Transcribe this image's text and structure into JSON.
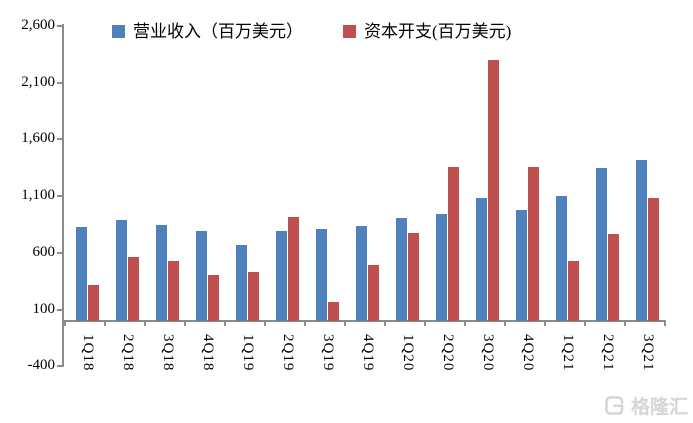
{
  "chart_data": {
    "type": "bar",
    "title": "",
    "categories": [
      "1Q18",
      "2Q18",
      "3Q18",
      "4Q18",
      "1Q19",
      "2Q19",
      "3Q19",
      "4Q19",
      "1Q20",
      "2Q20",
      "3Q20",
      "4Q20",
      "1Q21",
      "2Q21",
      "3Q21"
    ],
    "series": [
      {
        "name": "营业收入（百万美元）",
        "color": "#4F81BD",
        "values": [
          830,
          890,
          850,
          790,
          670,
          790,
          815,
          840,
          905,
          940,
          1080,
          980,
          1105,
          1345,
          1415
        ]
      },
      {
        "name": "资本开支(百万美元)",
        "color": "#C0504D",
        "values": [
          315,
          560,
          525,
          405,
          430,
          920,
          165,
          490,
          775,
          1355,
          2300,
          1360,
          530,
          770,
          1080
        ]
      }
    ],
    "ylim": [
      -400,
      2600
    ],
    "ytick_step": 500,
    "ytick_labels": [
      "2,600",
      "2,100",
      "1,600",
      "1,100",
      "600",
      "100",
      "-400"
    ],
    "bar_baseline": 0,
    "grid": false,
    "legend_position": "top",
    "axis_color": "#8C8C8C"
  },
  "watermark": {
    "text": "格隆汇",
    "icon": "gelonghui-logo",
    "color": "#D6D6D6"
  }
}
